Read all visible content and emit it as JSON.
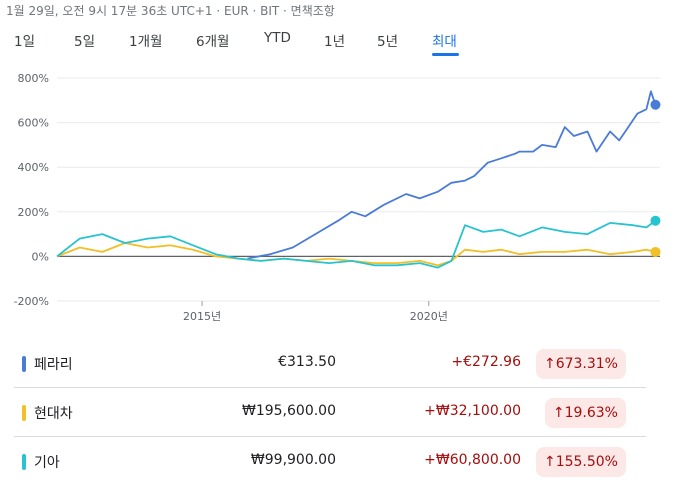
{
  "header": {
    "meta_text": "1월 29일, 오전 9시 17분 36초 UTC+1 · EUR · BIT · 면책조항"
  },
  "tabs": [
    {
      "label": "1일"
    },
    {
      "label": "5일"
    },
    {
      "label": "1개월"
    },
    {
      "label": "6개월"
    },
    {
      "label": "YTD"
    },
    {
      "label": "1년"
    },
    {
      "label": "5년"
    },
    {
      "label": "최대",
      "active": true
    }
  ],
  "colors": {
    "ferrari": "#4a7bd6",
    "hyundai": "#f1bf26",
    "kia": "#27c3d0",
    "accent": "#1a73e8",
    "negative": "#a50e0e"
  },
  "rows": [
    {
      "name": "페라리",
      "price": "€313.50",
      "change": "+€272.96",
      "percent": "↑673.31%",
      "color": "#4a7bd6"
    },
    {
      "name": "현대차",
      "price": "₩195,600.00",
      "change": "+₩32,100.00",
      "percent": "↑19.63%",
      "color": "#f1bf26"
    },
    {
      "name": "기아",
      "price": "₩99,900.00",
      "change": "+₩60,800.00",
      "percent": "↑155.50%",
      "color": "#27c3d0"
    }
  ],
  "chart_data": {
    "type": "line",
    "ylabel": "",
    "xlabel": "",
    "y_ticks": [
      "800%",
      "600%",
      "400%",
      "200%",
      "0%",
      "-200%"
    ],
    "y_tick_values": [
      800,
      600,
      400,
      200,
      0,
      -200
    ],
    "x_ticks": [
      "2015년",
      "2020년"
    ],
    "x_tick_values": [
      2015,
      2020
    ],
    "xlim": [
      2011.8,
      2025.1
    ],
    "ylim": [
      -200,
      800
    ],
    "series": [
      {
        "name": "페라리",
        "color": "#4a7bd6",
        "x": [
          2016.0,
          2016.5,
          2017.0,
          2017.5,
          2018.0,
          2018.3,
          2018.6,
          2019.0,
          2019.5,
          2019.8,
          2020.2,
          2020.5,
          2020.8,
          2021.0,
          2021.3,
          2021.6,
          2021.9,
          2022.0,
          2022.3,
          2022.5,
          2022.8,
          2023.0,
          2023.2,
          2023.5,
          2023.7,
          2024.0,
          2024.2,
          2024.4,
          2024.6,
          2024.8,
          2024.9,
          2025.0
        ],
        "y": [
          -10,
          10,
          40,
          100,
          160,
          200,
          180,
          230,
          280,
          260,
          290,
          330,
          340,
          360,
          420,
          440,
          460,
          470,
          470,
          500,
          490,
          580,
          540,
          560,
          470,
          560,
          520,
          580,
          640,
          660,
          740,
          680
        ]
      },
      {
        "name": "현대차",
        "color": "#f1bf26",
        "x": [
          2011.8,
          2012.3,
          2012.8,
          2013.3,
          2013.8,
          2014.3,
          2014.8,
          2015.3,
          2015.8,
          2016.3,
          2016.8,
          2017.3,
          2017.8,
          2018.3,
          2018.8,
          2019.3,
          2019.8,
          2020.2,
          2020.5,
          2020.8,
          2021.2,
          2021.6,
          2022.0,
          2022.5,
          2023.0,
          2023.5,
          2024.0,
          2024.5,
          2024.8,
          2025.0
        ],
        "y": [
          0,
          40,
          20,
          60,
          40,
          50,
          30,
          0,
          -10,
          -20,
          -10,
          -20,
          -10,
          -20,
          -30,
          -30,
          -20,
          -40,
          -20,
          30,
          20,
          30,
          10,
          20,
          20,
          30,
          10,
          20,
          30,
          20
        ]
      },
      {
        "name": "기아",
        "color": "#27c3d0",
        "x": [
          2011.8,
          2012.3,
          2012.8,
          2013.3,
          2013.8,
          2014.3,
          2014.8,
          2015.3,
          2015.8,
          2016.3,
          2016.8,
          2017.3,
          2017.8,
          2018.3,
          2018.8,
          2019.3,
          2019.8,
          2020.2,
          2020.5,
          2020.8,
          2021.2,
          2021.6,
          2022.0,
          2022.5,
          2023.0,
          2023.5,
          2024.0,
          2024.5,
          2024.8,
          2025.0
        ],
        "y": [
          0,
          80,
          100,
          60,
          80,
          90,
          50,
          10,
          -10,
          -20,
          -10,
          -20,
          -30,
          -20,
          -40,
          -40,
          -30,
          -50,
          -20,
          140,
          110,
          120,
          90,
          130,
          110,
          100,
          150,
          140,
          130,
          160
        ]
      }
    ]
  }
}
